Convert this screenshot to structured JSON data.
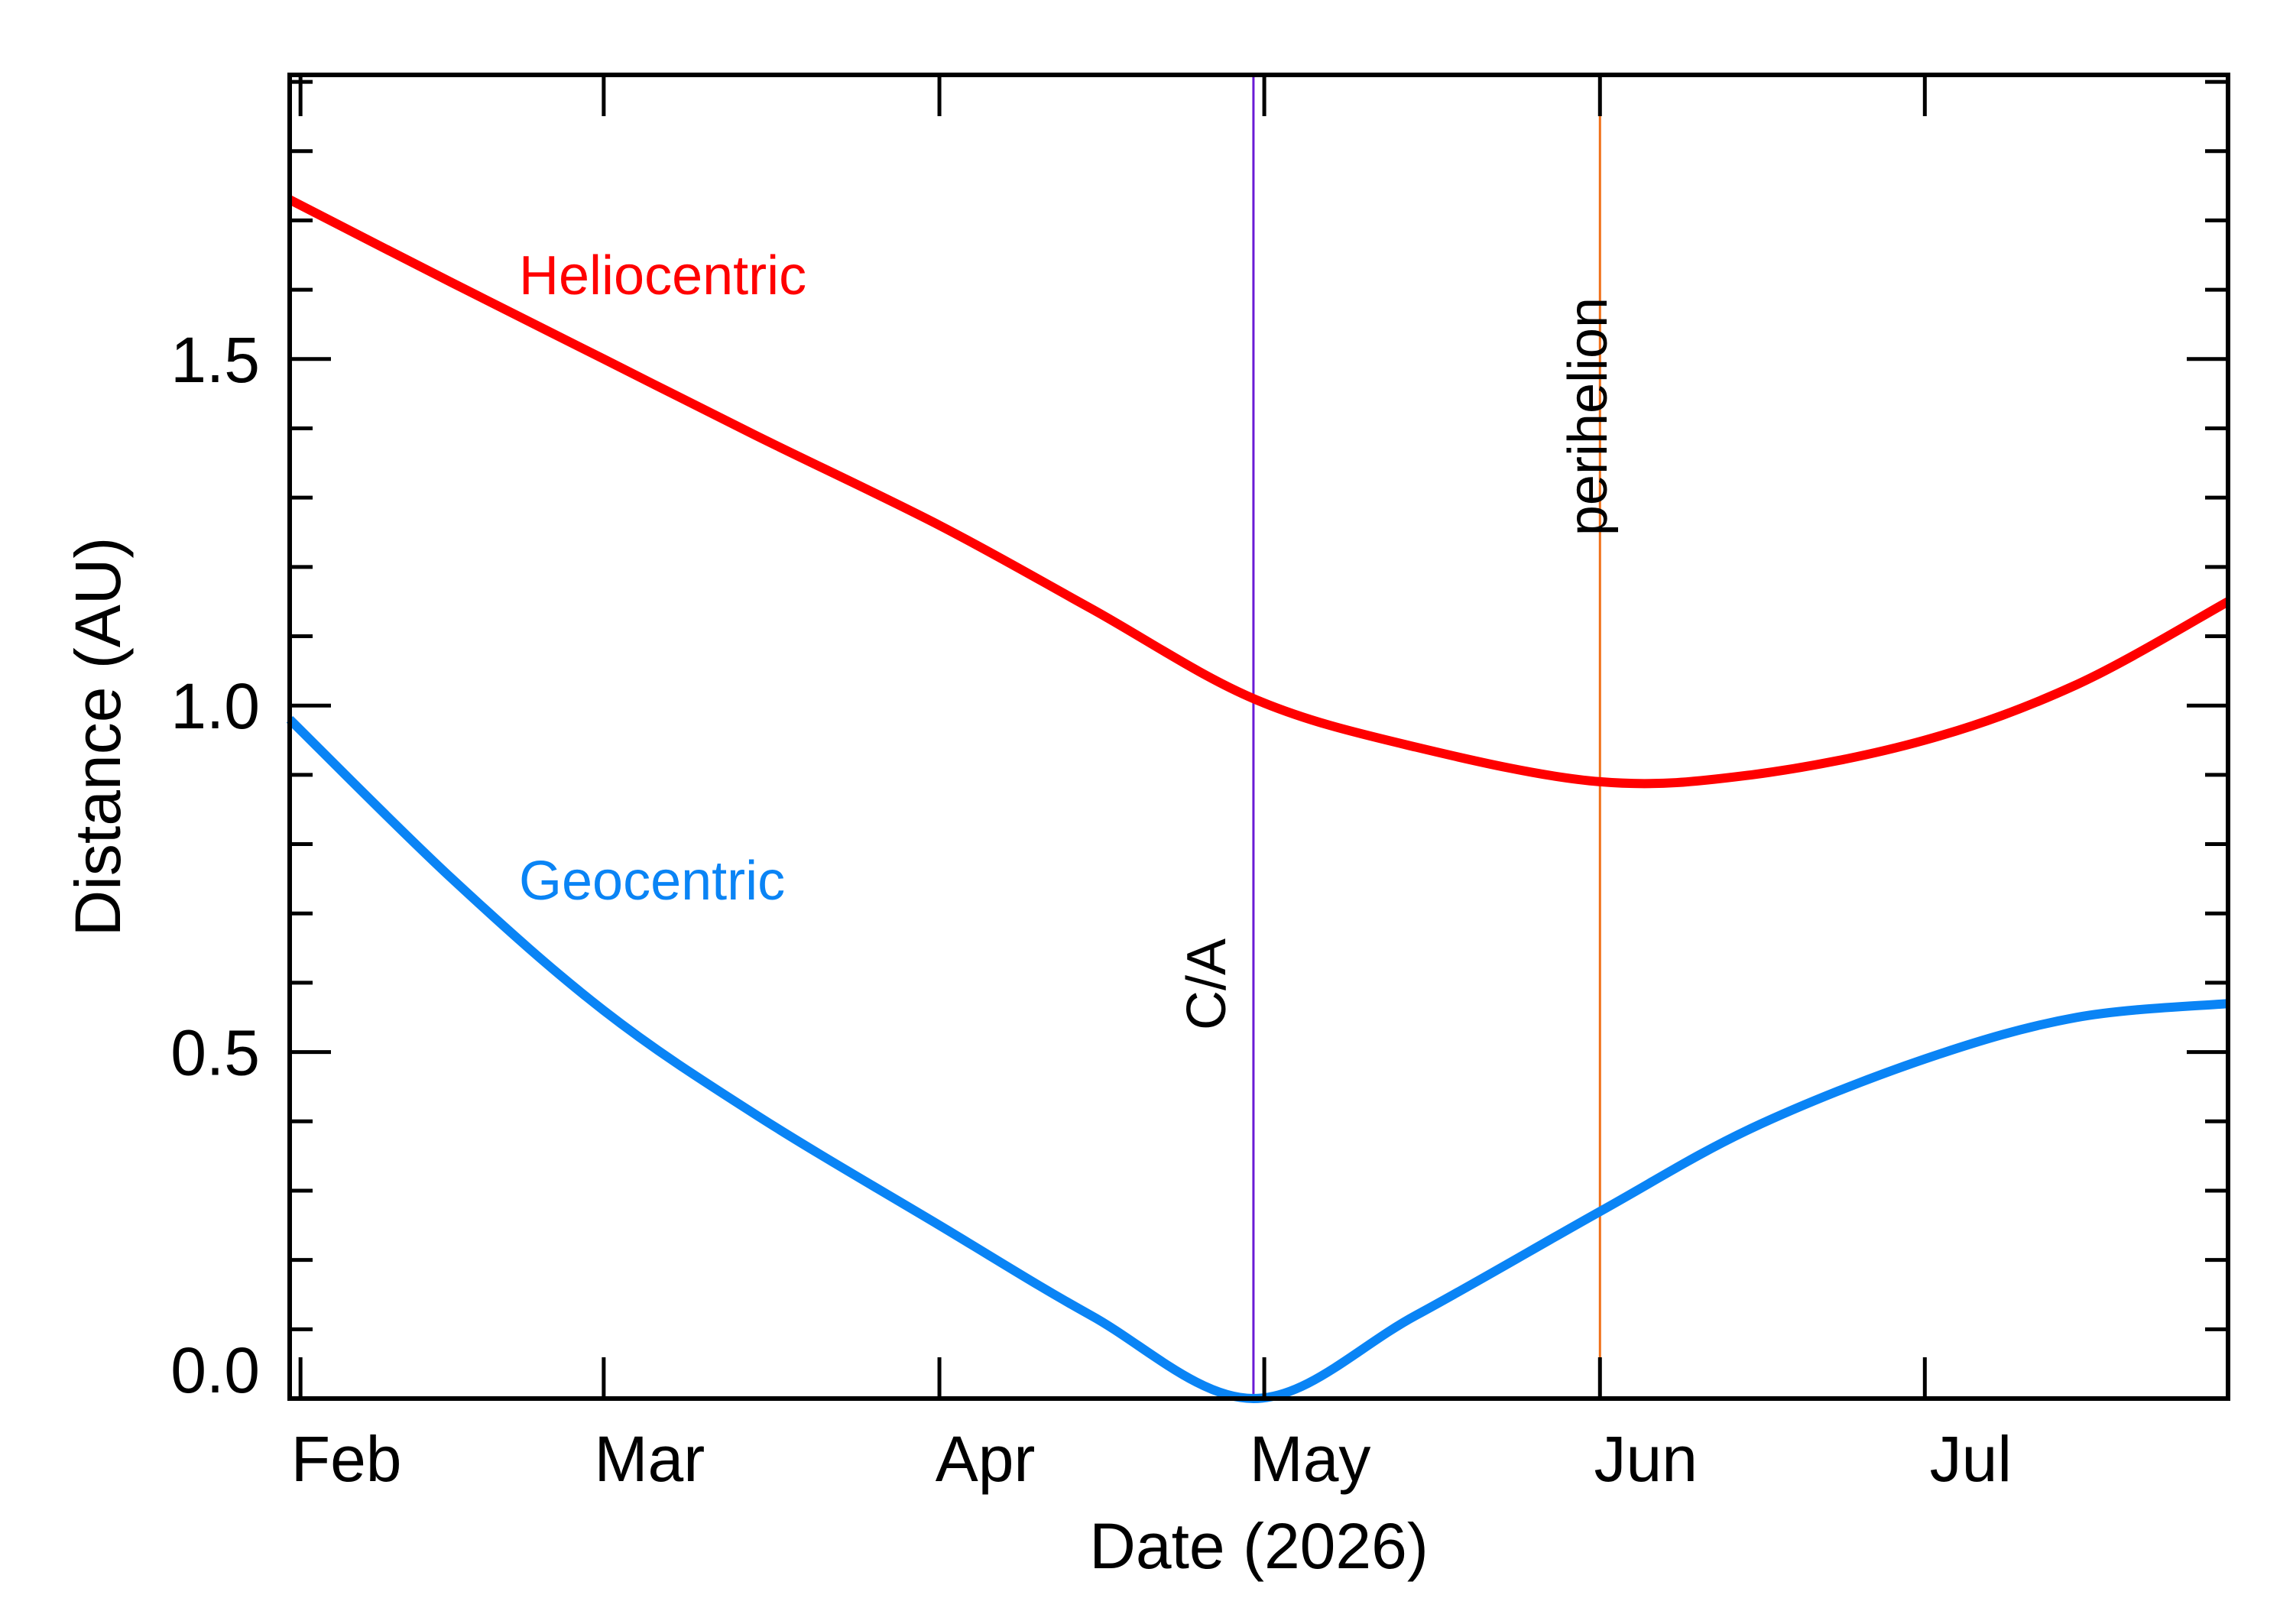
{
  "chart_data": {
    "type": "line",
    "title": "",
    "xlabel": "Date (2026)",
    "ylabel": "Distance (AU)",
    "x_unit": "date",
    "xlim": [
      "2026-01-31",
      "2026-07-29"
    ],
    "ylim": [
      0.0,
      1.91
    ],
    "grid": false,
    "x_ticks": [
      {
        "date": "2026-02-01",
        "label": "Feb"
      },
      {
        "date": "2026-03-01",
        "label": "Mar"
      },
      {
        "date": "2026-04-01",
        "label": "Apr"
      },
      {
        "date": "2026-05-01",
        "label": "May"
      },
      {
        "date": "2026-06-01",
        "label": "Jun"
      },
      {
        "date": "2026-07-01",
        "label": "Jul"
      }
    ],
    "y_ticks": [
      {
        "value": 0.0,
        "label": "0.0"
      },
      {
        "value": 0.5,
        "label": "0.5"
      },
      {
        "value": 1.0,
        "label": "1.0"
      },
      {
        "value": 1.5,
        "label": "1.5"
      }
    ],
    "series": [
      {
        "name": "Heliocentric",
        "color": "#ff0000",
        "x": [
          "2026-01-31",
          "2026-02-15",
          "2026-03-01",
          "2026-03-15",
          "2026-04-01",
          "2026-04-15",
          "2026-04-30",
          "2026-05-15",
          "2026-06-01",
          "2026-06-15",
          "2026-07-01",
          "2026-07-15",
          "2026-07-29"
        ],
        "y": [
          1.73,
          1.61,
          1.5,
          1.39,
          1.26,
          1.14,
          1.01,
          0.94,
          0.89,
          0.9,
          0.95,
          1.03,
          1.15
        ]
      },
      {
        "name": "Geocentric",
        "color": "#0a84f5",
        "x": [
          "2026-01-31",
          "2026-02-15",
          "2026-03-01",
          "2026-03-15",
          "2026-04-01",
          "2026-04-15",
          "2026-04-30",
          "2026-05-15",
          "2026-06-01",
          "2026-06-15",
          "2026-07-01",
          "2026-07-15",
          "2026-07-29"
        ],
        "y": [
          0.98,
          0.75,
          0.56,
          0.41,
          0.25,
          0.12,
          0.0,
          0.12,
          0.27,
          0.39,
          0.49,
          0.55,
          0.57
        ]
      }
    ],
    "vertical_lines": [
      {
        "date": "2026-04-30",
        "label": "C/A",
        "color": "#6a1bd6",
        "label_color": "#4b0fb0"
      },
      {
        "date": "2026-06-01",
        "label": "perihelion",
        "color": "#f07018",
        "label_color": "#f06010"
      }
    ]
  }
}
